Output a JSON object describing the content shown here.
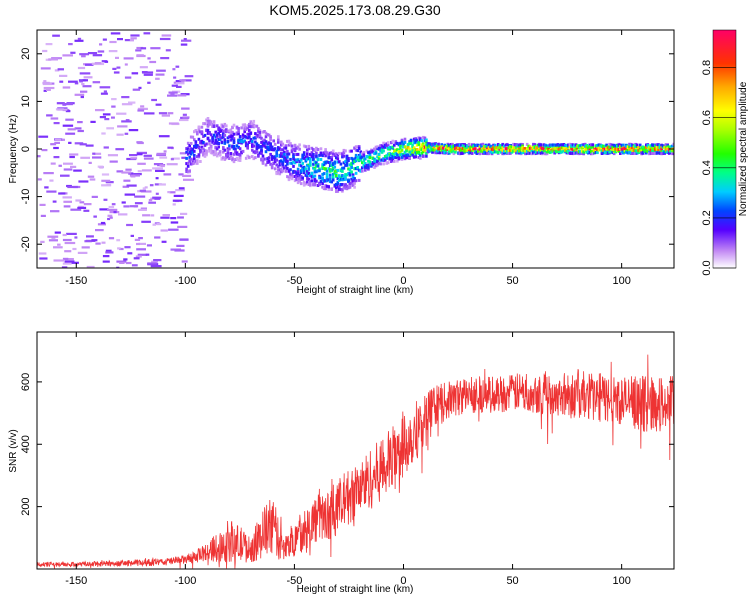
{
  "title": "KOM5.2025.173.08.29.G30",
  "chart_data": [
    {
      "type": "heatmap",
      "title": "KOM5.2025.173.08.29.G30",
      "xlabel": "Height of straight line (km)",
      "ylabel": "Frequency (Hz)",
      "xlim": [
        -168,
        124
      ],
      "ylim": [
        -25,
        25
      ],
      "xticks": [
        -150,
        -100,
        -50,
        0,
        50,
        100
      ],
      "yticks": [
        -20,
        -10,
        0,
        10,
        20
      ],
      "xtick_labels": [
        "-150",
        "-100",
        "-50",
        "0",
        "50",
        "100"
      ],
      "ytick_labels": [
        "-20",
        "-10",
        "0",
        "10",
        "20"
      ],
      "colorbar": {
        "label": "Normalized spectral amplitude",
        "range": [
          0,
          0.95
        ],
        "ticks": [
          0.0,
          0.2,
          0.4,
          0.6,
          0.8
        ],
        "tick_labels": [
          "0.0",
          "0.2",
          "0.4",
          "0.6",
          "0.8"
        ]
      },
      "signal_trace": {
        "x": [
          -100,
          -90,
          -80,
          -70,
          -60,
          -50,
          -40,
          -30,
          -20,
          -10,
          0,
          10,
          20,
          30,
          50,
          70,
          90,
          110,
          124
        ],
        "frequency": [
          -2,
          3,
          1,
          2,
          -1,
          -3,
          -4,
          -5,
          -3,
          -1,
          0,
          0.3,
          0,
          0,
          0,
          0,
          0,
          0,
          0
        ],
        "amplitude": [
          0.25,
          0.2,
          0.25,
          0.25,
          0.25,
          0.3,
          0.45,
          0.45,
          0.45,
          0.55,
          0.7,
          0.8,
          0.9,
          0.9,
          0.95,
          0.95,
          0.95,
          0.95,
          0.9
        ]
      },
      "noise_region": {
        "x_start": -168,
        "x_end": -100,
        "amplitude": 0.05
      }
    },
    {
      "type": "line",
      "xlabel": "Height of straight line (km)",
      "ylabel": "SNR (v/v)",
      "xlim": [
        -168,
        124
      ],
      "ylim": [
        0,
        760
      ],
      "xticks": [
        -150,
        -100,
        -50,
        0,
        50,
        100
      ],
      "yticks": [
        200,
        400,
        600
      ],
      "xtick_labels": [
        "-150",
        "-100",
        "-50",
        "0",
        "50",
        "100"
      ],
      "ytick_labels": [
        "200",
        "400",
        "600"
      ],
      "series": [
        {
          "color": "#ee3333",
          "x": [
            -168,
            -150,
            -130,
            -110,
            -100,
            -95,
            -90,
            -85,
            -80,
            -75,
            -70,
            -65,
            -60,
            -55,
            -50,
            -45,
            -40,
            -35,
            -30,
            -25,
            -20,
            -15,
            -10,
            -5,
            0,
            5,
            10,
            15,
            20,
            25,
            30,
            40,
            50,
            60,
            70,
            80,
            90,
            100,
            110,
            124
          ],
          "y": [
            15,
            15,
            18,
            22,
            30,
            40,
            55,
            70,
            90,
            80,
            60,
            110,
            140,
            60,
            100,
            130,
            160,
            170,
            200,
            230,
            260,
            290,
            320,
            350,
            400,
            440,
            480,
            520,
            540,
            550,
            560,
            560,
            565,
            570,
            560,
            560,
            550,
            540,
            530,
            530
          ],
          "spread": [
            8,
            8,
            10,
            12,
            15,
            20,
            30,
            50,
            70,
            60,
            40,
            80,
            100,
            40,
            60,
            70,
            80,
            80,
            90,
            90,
            90,
            100,
            100,
            110,
            110,
            100,
            90,
            70,
            60,
            60,
            60,
            60,
            60,
            70,
            70,
            80,
            80,
            80,
            90,
            90
          ]
        }
      ]
    }
  ]
}
